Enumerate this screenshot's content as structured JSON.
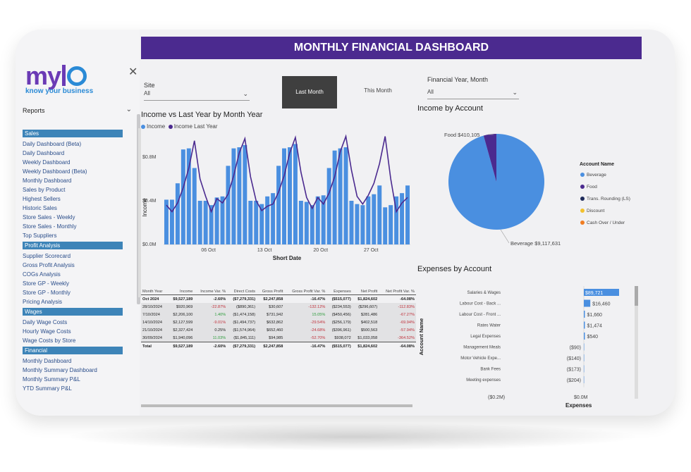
{
  "logo": {
    "brand": "my",
    "tagline": "know your business"
  },
  "sidebar": {
    "reports_label": "Reports",
    "sections": [
      {
        "title": "Sales",
        "items": [
          "Daily Dashboard (Beta)",
          "Daily Dashboard",
          "Weekly Dashboard",
          "Weekly Dashboard (Beta)",
          "Monthly Dashboard",
          "Sales by Product",
          "Highest Sellers",
          "Historic Sales",
          "Store Sales - Weekly",
          "Store Sales - Monthly",
          "Top Suppliers"
        ]
      },
      {
        "title": "Profit Analysis",
        "items": [
          "Supplier Scorecard",
          "Gross Profit Analysis",
          "COGs Analysis",
          "Store GP - Weekly",
          "Store GP - Monthly",
          "Pricing Analysis"
        ]
      },
      {
        "title": "Wages",
        "items": [
          "Daily Wage Costs",
          "Hourly Wage Costs",
          "Wage Costs by Store"
        ]
      },
      {
        "title": "Financial",
        "items": [
          "Monthly Dashboard",
          "Monthly Summary Dashboard",
          "Monthly Summary P&L",
          "YTD Summary P&L"
        ]
      }
    ]
  },
  "header": {
    "title": "MONTHLY FINANCIAL DASHBOARD"
  },
  "filters": {
    "site_label": "Site",
    "site_value": "All",
    "last_month": "Last Month",
    "this_month": "This Month",
    "fy_label": "Financial Year, Month",
    "fy_value": "All"
  },
  "colors": {
    "income": "#4a8fe0",
    "last_year": "#4b2a8f",
    "header": "#4b2a8f"
  },
  "income_chart": {
    "title": "Income vs Last Year by Month Year",
    "legend": [
      "Income",
      "Income Last Year"
    ],
    "ylabel": "Income",
    "xlabel": "Short Date",
    "yticks": [
      "$0.0M",
      "$0.4M",
      "$0.8M"
    ],
    "xticks": [
      "06 Oct",
      "13 Oct",
      "20 Oct",
      "27 Oct"
    ]
  },
  "table": {
    "headers": [
      "Month Year",
      "Income",
      "Income Var. %",
      "Direct Costs",
      "Gross Profit",
      "Gross Profit Var. %",
      "Expenses",
      "Net Profit",
      "Net Profit Var. %"
    ],
    "rows": [
      {
        "type": "group",
        "cells": [
          "Oct 2024",
          "$9,527,189",
          "-2.60%",
          "($7,279,331)",
          "$2,247,858",
          "-16.47%",
          "($515,077)",
          "$1,824,602",
          "-64.08%"
        ],
        "neg": [
          2,
          5,
          8
        ]
      },
      {
        "type": "sub",
        "cells": [
          "28/10/2024",
          "$920,969",
          "-22.87%",
          "($890,361)",
          "$30,607",
          "-132.12%",
          "($234,553)",
          "($296,607)",
          "-112.83%"
        ],
        "neg": [
          2,
          5,
          8
        ]
      },
      {
        "type": "sub",
        "cells": [
          "7/10/2024",
          "$2,206,100",
          "1.40%",
          "($1,474,158)",
          "$731,942",
          "15.05%",
          "($450,456)",
          "$281,486",
          "-67.27%"
        ],
        "neg": [
          8
        ],
        "pos": [
          2,
          5
        ]
      },
      {
        "type": "sub",
        "cells": [
          "14/10/2024",
          "$2,127,599",
          "-9.01%",
          "($1,494,737)",
          "$632,862",
          "-29.54%",
          "($256,179)",
          "$402,518",
          "-69.94%"
        ],
        "neg": [
          2,
          5,
          8
        ]
      },
      {
        "type": "sub",
        "cells": [
          "21/10/2024",
          "$2,327,424",
          "0.25%",
          "($1,574,964)",
          "$652,460",
          "-24.68%",
          "($396,961)",
          "$500,563",
          "-57.94%"
        ],
        "neg": [
          5,
          8
        ]
      },
      {
        "type": "sub",
        "cells": [
          "30/09/2024",
          "$1,940,096",
          "11.03%",
          "($1,845,111)",
          "$94,985",
          "-52.70%",
          "$938,072",
          "$1,033,058",
          "-364.52%"
        ],
        "neg": [
          5,
          8
        ],
        "pos": [
          2
        ]
      },
      {
        "type": "total",
        "cells": [
          "Total",
          "$9,527,189",
          "-2.60%",
          "($7,279,331)",
          "$2,247,858",
          "-16.47%",
          "($515,077)",
          "$1,824,602",
          "-64.08%"
        ],
        "neg": []
      }
    ]
  },
  "pie_chart": {
    "title": "Income by Account",
    "legend_title": "Account Name",
    "legend": [
      {
        "name": "Beverage",
        "color": "#4a8fe0"
      },
      {
        "name": "Food",
        "color": "#4b2a8f"
      },
      {
        "name": "Trans. Rounding (LS)",
        "color": "#1e2a5a"
      },
      {
        "name": "Discount",
        "color": "#f2c12e"
      },
      {
        "name": "Cash Over / Under",
        "color": "#f07d22"
      }
    ],
    "label_food": "Food $410,105",
    "label_beverage": "Beverage $9,117,631"
  },
  "expenses_chart": {
    "title": "Expenses by Account",
    "ylabel": "Account Name",
    "xlabel": "Expenses",
    "xticks": [
      "($0.2M)",
      "$0.0M"
    ],
    "rows": [
      {
        "name": "Salaries & Wages",
        "label": "$89,721"
      },
      {
        "name": "Labour Cost - Back ...",
        "label": "$16,460"
      },
      {
        "name": "Labour Cost - Front ...",
        "label": "$1,660"
      },
      {
        "name": "Rates Water",
        "label": "$1,474"
      },
      {
        "name": "Legal Expenses",
        "label": "$540"
      },
      {
        "name": "Management Meals",
        "label": "($90)"
      },
      {
        "name": "Motor Vehicle Expe...",
        "label": "($140)"
      },
      {
        "name": "Bank Fees",
        "label": "($173)"
      },
      {
        "name": "Meeting expenses",
        "label": "($204)"
      }
    ]
  },
  "chart_data": [
    {
      "type": "bar",
      "title": "Income vs Last Year by Month Year",
      "xlabel": "Short Date",
      "ylabel": "Income",
      "ylim": [
        0,
        1.0
      ],
      "x": [
        1,
        2,
        3,
        4,
        5,
        6,
        7,
        8,
        9,
        10,
        11,
        12,
        13,
        14,
        15,
        16,
        17,
        18,
        19,
        20,
        21,
        22,
        23,
        24,
        25,
        26,
        27,
        28,
        29,
        30,
        31,
        32,
        33,
        34,
        35,
        36,
        37,
        38,
        39,
        40,
        41,
        42,
        43,
        44
      ],
      "series": [
        {
          "name": "Income",
          "values": [
            0.41,
            0.41,
            0.56,
            0.87,
            0.88,
            0.7,
            0.4,
            0.4,
            0.36,
            0.43,
            0.44,
            0.72,
            0.88,
            0.89,
            0.91,
            0.4,
            0.4,
            0.37,
            0.44,
            0.47,
            0.72,
            0.88,
            0.89,
            0.92,
            0.4,
            0.39,
            0.36,
            0.44,
            0.45,
            0.7,
            0.86,
            0.88,
            0.89,
            0.4,
            0.37,
            0.36,
            0.44,
            0.46,
            0.54,
            0.34,
            0.36,
            0.44,
            0.47,
            0.54
          ]
        },
        {
          "name": "Income Last Year",
          "values": [
            0.36,
            0.3,
            0.38,
            0.52,
            0.7,
            0.95,
            0.6,
            0.44,
            0.3,
            0.42,
            0.38,
            0.46,
            0.63,
            0.84,
            0.97,
            0.62,
            0.4,
            0.31,
            0.35,
            0.37,
            0.48,
            0.63,
            0.84,
            0.98,
            0.66,
            0.43,
            0.33,
            0.43,
            0.37,
            0.47,
            0.62,
            0.85,
            0.99,
            0.68,
            0.44,
            0.37,
            0.45,
            0.56,
            0.74,
            0.99,
            0.6,
            0.3,
            0.38,
            0.43
          ]
        }
      ]
    },
    {
      "type": "pie",
      "title": "Income by Account",
      "categories": [
        "Beverage",
        "Food"
      ],
      "values": [
        9117631,
        410105
      ]
    },
    {
      "type": "bar",
      "title": "Expenses by Account",
      "xlabel": "Expenses",
      "ylabel": "Account Name",
      "categories": [
        "Salaries & Wages",
        "Labour Cost - Back ...",
        "Labour Cost - Front ...",
        "Rates Water",
        "Legal Expenses",
        "Management Meals",
        "Motor Vehicle Expe...",
        "Bank Fees",
        "Meeting expenses"
      ],
      "values": [
        89721,
        16460,
        1660,
        1474,
        540,
        -90,
        -140,
        -173,
        -204
      ]
    }
  ]
}
